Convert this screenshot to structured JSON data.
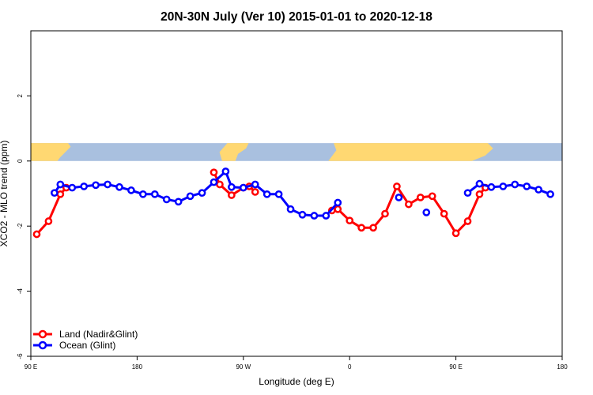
{
  "chart_data": {
    "type": "line",
    "title": "20N-30N July (Ver 10)   2015-01-01 to 2020-12-18",
    "xlabel": "Longitude (deg E)",
    "ylabel": "XCO2 - MLO trend (ppm)",
    "xlim": [
      -90,
      180
    ],
    "ylim": [
      -6,
      4
    ],
    "x_ticks": [
      {
        "value": -90,
        "label": "90 E"
      },
      {
        "value": -36,
        "label": "180"
      },
      {
        "value": 18,
        "label": "90 W"
      },
      {
        "value": 72,
        "label": "0"
      },
      {
        "value": 126,
        "label": "90 E"
      },
      {
        "value": 180,
        "label": "180"
      }
    ],
    "y_ticks": [
      {
        "value": -6,
        "label": "-6"
      },
      {
        "value": -4,
        "label": "-4"
      },
      {
        "value": -2,
        "label": "-2"
      },
      {
        "value": 0,
        "label": "0"
      },
      {
        "value": 2,
        "label": "2"
      }
    ],
    "grid": false,
    "legend_position": "bottom-left",
    "series": [
      {
        "name": "Land (Nadir&Glint)",
        "color": "#ff0000",
        "points": [
          {
            "x": -87,
            "y": -2.25
          },
          {
            "x": -81,
            "y": -1.85
          },
          {
            "x": -75,
            "y": -1.02
          },
          {
            "x": -72,
            "y": -0.82
          },
          {
            "x": 3,
            "y": -0.35
          },
          {
            "x": 6,
            "y": -0.72
          },
          {
            "x": 12,
            "y": -1.05
          },
          {
            "x": 18,
            "y": -0.82
          },
          {
            "x": 21,
            "y": -0.78
          },
          {
            "x": 24,
            "y": -0.95
          },
          {
            "x": 63,
            "y": -1.52
          },
          {
            "x": 66,
            "y": -1.48
          },
          {
            "x": 72,
            "y": -1.83
          },
          {
            "x": 78,
            "y": -2.05
          },
          {
            "x": 84,
            "y": -2.05
          },
          {
            "x": 90,
            "y": -1.62
          },
          {
            "x": 96,
            "y": -0.78
          },
          {
            "x": 102,
            "y": -1.33
          },
          {
            "x": 108,
            "y": -1.12
          },
          {
            "x": 114,
            "y": -1.08
          },
          {
            "x": 120,
            "y": -1.62
          },
          {
            "x": 126,
            "y": -2.22
          },
          {
            "x": 132,
            "y": -1.85
          },
          {
            "x": 138,
            "y": -1.02
          },
          {
            "x": 141,
            "y": -0.82
          }
        ]
      },
      {
        "name": "Ocean (Glint)",
        "color": "#0000ff",
        "points": [
          {
            "x": -78,
            "y": -0.98
          },
          {
            "x": -75,
            "y": -0.72
          },
          {
            "x": -69,
            "y": -0.82
          },
          {
            "x": -63,
            "y": -0.78
          },
          {
            "x": -57,
            "y": -0.74
          },
          {
            "x": -51,
            "y": -0.72
          },
          {
            "x": -45,
            "y": -0.8
          },
          {
            "x": -39,
            "y": -0.9
          },
          {
            "x": -33,
            "y": -1.02
          },
          {
            "x": -27,
            "y": -1.02
          },
          {
            "x": -21,
            "y": -1.18
          },
          {
            "x": -15,
            "y": -1.25
          },
          {
            "x": -9,
            "y": -1.08
          },
          {
            "x": -3,
            "y": -0.98
          },
          {
            "x": 3,
            "y": -0.65
          },
          {
            "x": 9,
            "y": -0.32
          },
          {
            "x": 12,
            "y": -0.8
          },
          {
            "x": 18,
            "y": -0.82
          },
          {
            "x": 24,
            "y": -0.72
          },
          {
            "x": 30,
            "y": -1.02
          },
          {
            "x": 36,
            "y": -1.02
          },
          {
            "x": 42,
            "y": -1.48
          },
          {
            "x": 48,
            "y": -1.65
          },
          {
            "x": 54,
            "y": -1.68
          },
          {
            "x": 60,
            "y": -1.68
          },
          {
            "x": 66,
            "y": -1.28
          },
          {
            "x": 132,
            "y": -0.98
          },
          {
            "x": 138,
            "y": -0.7
          },
          {
            "x": 144,
            "y": -0.8
          },
          {
            "x": 150,
            "y": -0.78
          },
          {
            "x": 156,
            "y": -0.72
          },
          {
            "x": 162,
            "y": -0.78
          },
          {
            "x": 168,
            "y": -0.88
          },
          {
            "x": 174,
            "y": -1.02
          }
        ],
        "isolated_points": [
          {
            "x": 97,
            "y": -1.12
          },
          {
            "x": 111,
            "y": -1.58
          }
        ]
      }
    ],
    "background_map": {
      "ocean_color": "#a9c0df",
      "land_color": "#ffd872",
      "y_range": [
        0,
        0.55
      ]
    }
  }
}
